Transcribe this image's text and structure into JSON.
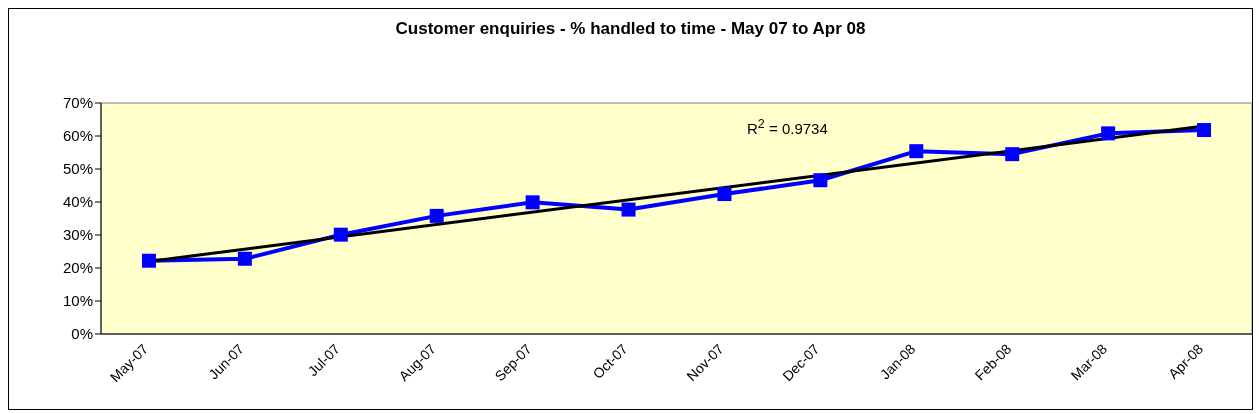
{
  "chart_data": {
    "type": "line",
    "title": "Customer enquiries - % handled to time - May 07 to Apr 08",
    "categories": [
      "May-07",
      "Jun-07",
      "Jul-07",
      "Aug-07",
      "Sep-07",
      "Oct-07",
      "Nov-07",
      "Dec-07",
      "Jan-08",
      "Feb-08",
      "Mar-08",
      "Apr-08"
    ],
    "series": [
      {
        "color": "#0000ff",
        "marker": "square",
        "values": [
          22.2,
          22.8,
          30.1,
          35.8,
          39.9,
          37.7,
          42.4,
          46.6,
          55.4,
          54.5,
          60.8,
          61.8
        ]
      },
      {
        "type": "line",
        "color": "#000000",
        "marker": "none",
        "x": [
          "May-07",
          "Apr-08"
        ],
        "values": [
          22.0,
          63.0
        ]
      }
    ],
    "ylim": [
      0,
      70
    ],
    "yticks": [
      {
        "value": 0,
        "label": "0%"
      },
      {
        "value": 10,
        "label": "10%"
      },
      {
        "value": 20,
        "label": "20%"
      },
      {
        "value": 30,
        "label": "30%"
      },
      {
        "value": 40,
        "label": "40%"
      },
      {
        "value": 50,
        "label": "50%"
      },
      {
        "value": 60,
        "label": "60%"
      },
      {
        "value": 70,
        "label": "70%"
      }
    ],
    "grid": false,
    "legend": false,
    "annotations": [
      "R$^{2}$ = 0.9734"
    ]
  }
}
